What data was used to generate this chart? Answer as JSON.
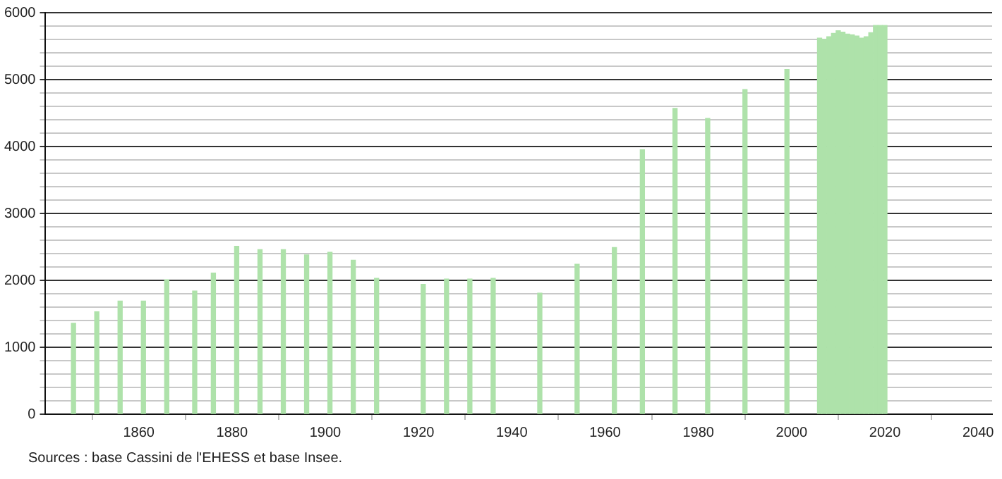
{
  "chart_data": {
    "type": "bar",
    "color": "#aee2aa",
    "x": [
      1846,
      1851,
      1856,
      1861,
      1866,
      1872,
      1876,
      1881,
      1886,
      1891,
      1896,
      1901,
      1906,
      1911,
      1921,
      1926,
      1931,
      1936,
      1946,
      1954,
      1962,
      1968,
      1975,
      1982,
      1990,
      1999,
      2006,
      2007,
      2008,
      2009,
      2010,
      2011,
      2012,
      2013,
      2014,
      2015,
      2016,
      2017,
      2018,
      2019,
      2020
    ],
    "values": [
      1360,
      1530,
      1690,
      1690,
      2010,
      1840,
      2110,
      2510,
      2460,
      2460,
      2380,
      2420,
      2300,
      2030,
      1940,
      2020,
      2020,
      2030,
      1810,
      2240,
      2490,
      3950,
      4570,
      4420,
      4850,
      5150,
      5620,
      5600,
      5640,
      5690,
      5730,
      5710,
      5680,
      5670,
      5650,
      5620,
      5640,
      5700,
      5810,
      5810,
      5810
    ],
    "xlim": [
      1840,
      2043
    ],
    "xticks": [
      1860,
      1880,
      1900,
      1920,
      1940,
      1960,
      1980,
      2000,
      2020,
      2040
    ],
    "ylim": [
      0,
      6000
    ],
    "yticks": [
      0,
      {
        "value": 200,
        "label": null
      },
      {
        "value": 400,
        "label": null
      },
      {
        "value": 600,
        "label": null
      },
      {
        "value": 800,
        "label": null
      },
      1000,
      {
        "value": 1200,
        "label": null
      },
      {
        "value": 1400,
        "label": null
      },
      {
        "value": 1600,
        "label": null
      },
      {
        "value": 1800,
        "label": null
      },
      2000,
      {
        "value": 2200,
        "label": null
      },
      {
        "value": 2400,
        "label": null
      },
      {
        "value": 2600,
        "label": null
      },
      {
        "value": 2800,
        "label": null
      },
      3000,
      {
        "value": 3200,
        "label": null
      },
      {
        "value": 3400,
        "label": null
      },
      {
        "value": 3600,
        "label": null
      },
      {
        "value": 3800,
        "label": null
      },
      4000,
      {
        "value": 4200,
        "label": null
      },
      {
        "value": 4400,
        "label": null
      },
      {
        "value": 4600,
        "label": null
      },
      {
        "value": 4800,
        "label": null
      },
      5000,
      {
        "value": 5200,
        "label": null
      },
      {
        "value": 5400,
        "label": null
      },
      {
        "value": 5600,
        "label": null
      },
      {
        "value": 5800,
        "label": null
      },
      6000
    ],
    "grid": "y",
    "legend": false,
    "annotations": [
      "Sources : base Cassini de l'EHESS et base Insee."
    ]
  }
}
